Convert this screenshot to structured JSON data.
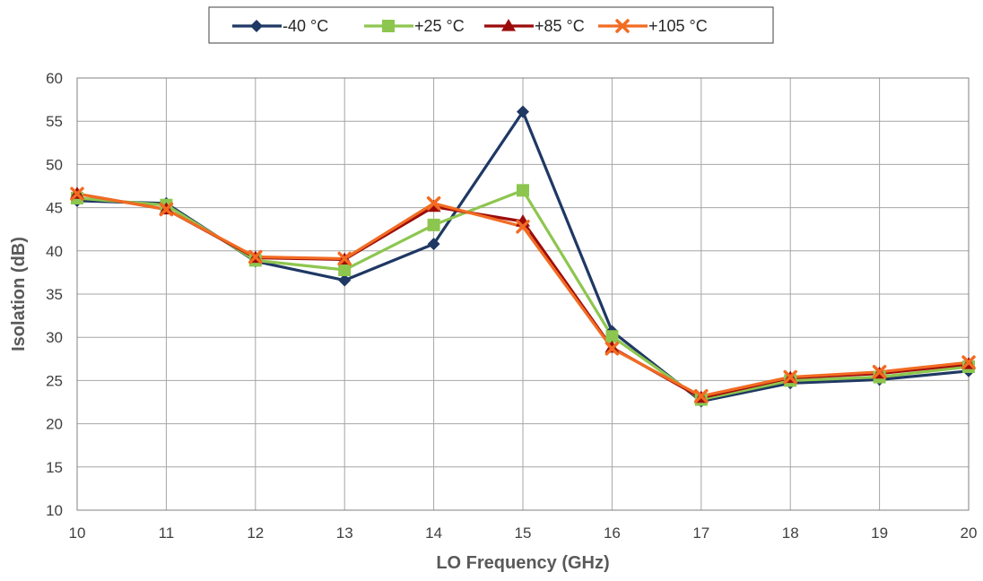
{
  "chart_data": {
    "type": "line",
    "xlabel": "LO Frequency (GHz)",
    "ylabel": "Isolation (dB)",
    "x": [
      10,
      11,
      12,
      13,
      14,
      15,
      16,
      17,
      18,
      19,
      20
    ],
    "xlim": [
      10,
      20
    ],
    "ylim": [
      10,
      60
    ],
    "xticks": [
      10,
      11,
      12,
      13,
      14,
      15,
      16,
      17,
      18,
      19,
      20
    ],
    "yticks": [
      10,
      15,
      20,
      25,
      30,
      35,
      40,
      45,
      50,
      55,
      60
    ],
    "grid": true,
    "legend_position": "top-center",
    "series": [
      {
        "name": "-40 °C",
        "color": "#1F3864",
        "marker": "diamond",
        "values": [
          45.8,
          45.5,
          38.8,
          36.6,
          40.8,
          56.1,
          30.7,
          22.6,
          24.7,
          25.1,
          26.1
        ]
      },
      {
        "name": "+25 °C",
        "color": "#8DC64F",
        "marker": "square",
        "values": [
          46.1,
          45.3,
          38.9,
          37.8,
          43.0,
          47.0,
          30.1,
          22.8,
          25.0,
          25.4,
          26.6
        ]
      },
      {
        "name": "+85 °C",
        "color": "#9C0B0B",
        "marker": "triangle",
        "values": [
          46.6,
          44.8,
          39.2,
          39.0,
          45.1,
          43.4,
          28.8,
          23.0,
          25.3,
          25.8,
          26.9
        ]
      },
      {
        "name": "+105 °C",
        "color": "#F26B22",
        "marker": "x",
        "values": [
          46.6,
          44.8,
          39.3,
          39.1,
          45.5,
          42.8,
          28.7,
          23.2,
          25.4,
          26.0,
          27.1
        ]
      }
    ]
  }
}
